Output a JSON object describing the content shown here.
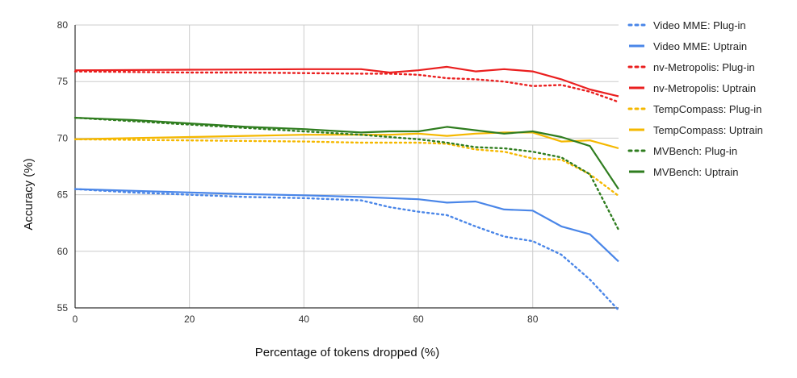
{
  "chart_data": {
    "type": "line",
    "title": "",
    "xlabel": "Percentage of tokens dropped (%)",
    "ylabel": "Accuracy (%)",
    "xlim": [
      0,
      95
    ],
    "ylim": [
      55,
      80
    ],
    "xticks": [
      0,
      20,
      40,
      60,
      80
    ],
    "yticks": [
      55,
      60,
      65,
      70,
      75,
      80
    ],
    "grid": true,
    "legend": "right",
    "series": [
      {
        "name": "Video MME: Plug-in",
        "color": "#4a86e8",
        "dashed": true,
        "x": [
          0,
          10,
          20,
          30,
          40,
          50,
          55,
          60,
          65,
          70,
          75,
          80,
          85,
          90,
          95
        ],
        "y": [
          65.5,
          65.2,
          65.0,
          64.8,
          64.7,
          64.5,
          63.9,
          63.5,
          63.2,
          62.2,
          61.3,
          60.9,
          59.7,
          57.5,
          54.8
        ]
      },
      {
        "name": "Video MME: Uptrain",
        "color": "#4a86e8",
        "dashed": false,
        "x": [
          0,
          10,
          20,
          30,
          40,
          50,
          55,
          60,
          65,
          70,
          75,
          80,
          85,
          90,
          95
        ],
        "y": [
          65.5,
          65.35,
          65.2,
          65.05,
          64.95,
          64.8,
          64.7,
          64.6,
          64.3,
          64.4,
          63.7,
          63.6,
          62.2,
          61.5,
          59.1
        ]
      },
      {
        "name": "nv-Metropolis: Plug-in",
        "color": "#ea1f1f",
        "dashed": true,
        "x": [
          0,
          10,
          20,
          30,
          40,
          50,
          55,
          60,
          65,
          70,
          75,
          80,
          85,
          90,
          95
        ],
        "y": [
          75.9,
          75.85,
          75.8,
          75.8,
          75.75,
          75.7,
          75.7,
          75.6,
          75.3,
          75.2,
          75.0,
          74.6,
          74.7,
          74.1,
          73.2
        ]
      },
      {
        "name": "nv-Metropolis: Uptrain",
        "color": "#ea1f1f",
        "dashed": false,
        "x": [
          0,
          10,
          20,
          30,
          40,
          50,
          55,
          60,
          65,
          70,
          75,
          80,
          85,
          90,
          95
        ],
        "y": [
          76.0,
          76.02,
          76.05,
          76.07,
          76.1,
          76.1,
          75.8,
          76.0,
          76.3,
          75.9,
          76.1,
          75.9,
          75.2,
          74.3,
          73.7
        ]
      },
      {
        "name": "TempCompass: Plug-in",
        "color": "#f5b800",
        "dashed": true,
        "x": [
          0,
          10,
          20,
          30,
          40,
          50,
          55,
          60,
          65,
          70,
          75,
          80,
          85,
          90,
          95
        ],
        "y": [
          69.9,
          69.85,
          69.8,
          69.75,
          69.7,
          69.6,
          69.6,
          69.6,
          69.5,
          69.0,
          68.8,
          68.2,
          68.1,
          66.8,
          64.9
        ]
      },
      {
        "name": "TempCompass: Uptrain",
        "color": "#f5b800",
        "dashed": false,
        "x": [
          0,
          10,
          20,
          30,
          40,
          50,
          55,
          60,
          65,
          70,
          75,
          80,
          85,
          90,
          95
        ],
        "y": [
          69.9,
          70.0,
          70.1,
          70.2,
          70.3,
          70.3,
          70.3,
          70.4,
          70.2,
          70.4,
          70.5,
          70.5,
          69.7,
          69.8,
          69.1
        ]
      },
      {
        "name": "MVBench: Plug-in",
        "color": "#2f7d1f",
        "dashed": true,
        "x": [
          0,
          10,
          20,
          30,
          40,
          50,
          55,
          60,
          65,
          70,
          75,
          80,
          85,
          90,
          95
        ],
        "y": [
          71.8,
          71.5,
          71.2,
          70.9,
          70.6,
          70.3,
          70.1,
          69.9,
          69.6,
          69.2,
          69.1,
          68.8,
          68.3,
          66.8,
          61.9
        ]
      },
      {
        "name": "MVBench: Uptrain",
        "color": "#2f7d1f",
        "dashed": false,
        "x": [
          0,
          10,
          20,
          30,
          40,
          50,
          55,
          60,
          65,
          70,
          75,
          80,
          85,
          90,
          95
        ],
        "y": [
          71.8,
          71.6,
          71.3,
          71.0,
          70.8,
          70.5,
          70.6,
          70.6,
          71.0,
          70.7,
          70.4,
          70.6,
          70.1,
          69.3,
          65.5
        ]
      }
    ]
  }
}
